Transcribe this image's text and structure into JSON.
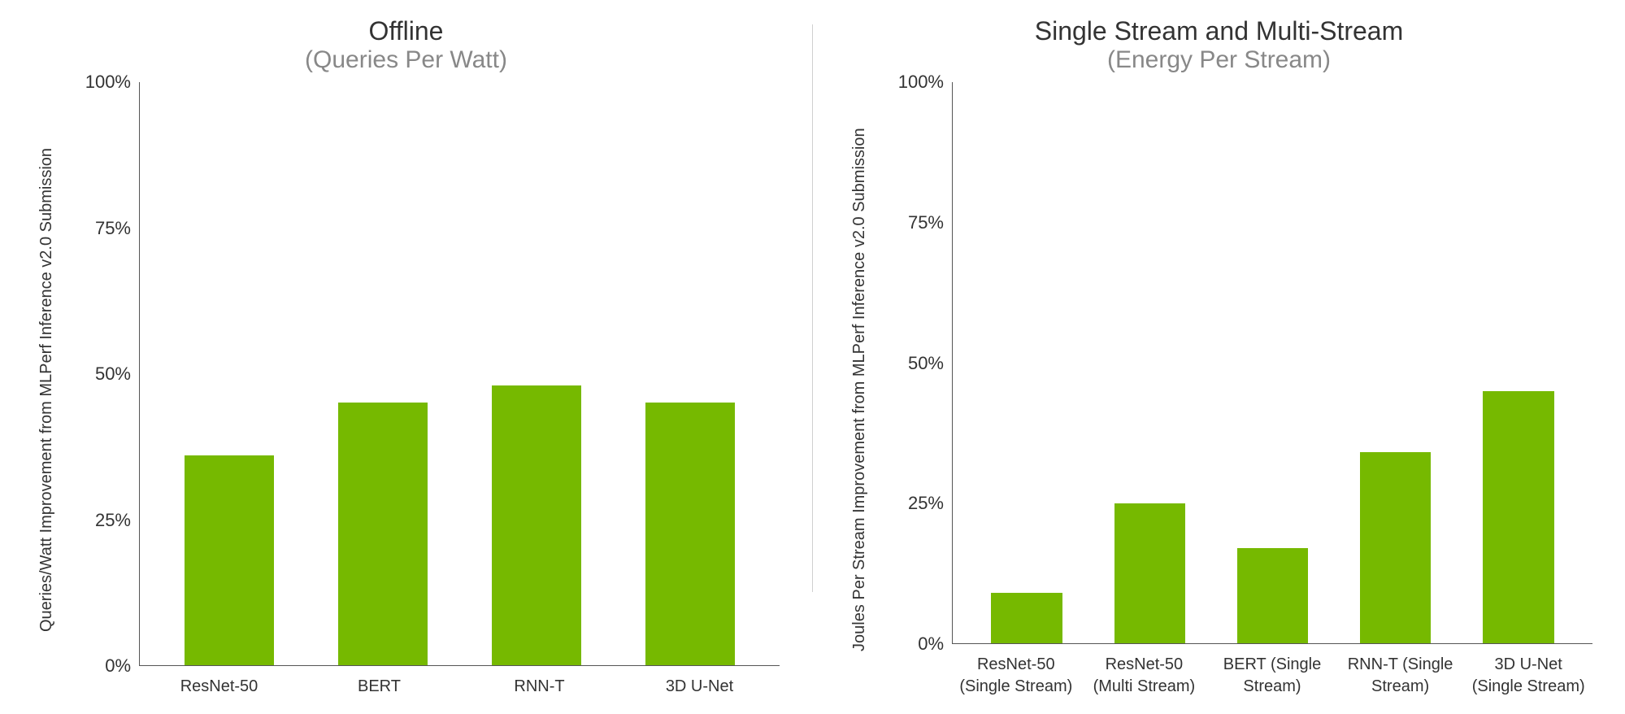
{
  "background_color": "#ffffff",
  "bar_color": "#76b900",
  "axis_line_color": "#555555",
  "divider_color": "#d0d0d0",
  "title_color": "#333333",
  "subtitle_color": "#888888",
  "text_color": "#333333",
  "title_fontsize": 32,
  "subtitle_fontsize": 30,
  "tick_fontsize": 22,
  "xtick_fontsize": 20,
  "ylabel_fontsize": 20,
  "left_chart": {
    "type": "bar",
    "title": "Offline",
    "subtitle": "(Queries Per Watt)",
    "ylabel": "Queries/Watt Improvement from MLPerf Inference v2.0 Submission",
    "ylim": [
      0,
      100
    ],
    "ytick_step": 25,
    "yticks": [
      "0%",
      "25%",
      "50%",
      "75%",
      "100%"
    ],
    "categories": [
      "ResNet-50",
      "BERT",
      "RNN-T",
      "3D U-Net"
    ],
    "values": [
      36,
      45,
      48,
      45
    ],
    "bar_width_pct": 58
  },
  "right_chart": {
    "type": "bar",
    "title": "Single Stream and Multi-Stream",
    "subtitle": "(Energy Per Stream)",
    "ylabel": "Joules  Per Stream Improvement from MLPerf Inference v2.0 Submission",
    "ylim": [
      0,
      100
    ],
    "ytick_step": 25,
    "yticks": [
      "0%",
      "25%",
      "50%",
      "75%",
      "100%"
    ],
    "categories": [
      "ResNet-50 (Single Stream)",
      "ResNet-50 (Multi Stream)",
      "BERT (Single Stream)",
      "RNN-T (Single Stream)",
      "3D U-Net (Single Stream)"
    ],
    "values": [
      9,
      25,
      17,
      34,
      45
    ],
    "bar_width_pct": 58
  }
}
